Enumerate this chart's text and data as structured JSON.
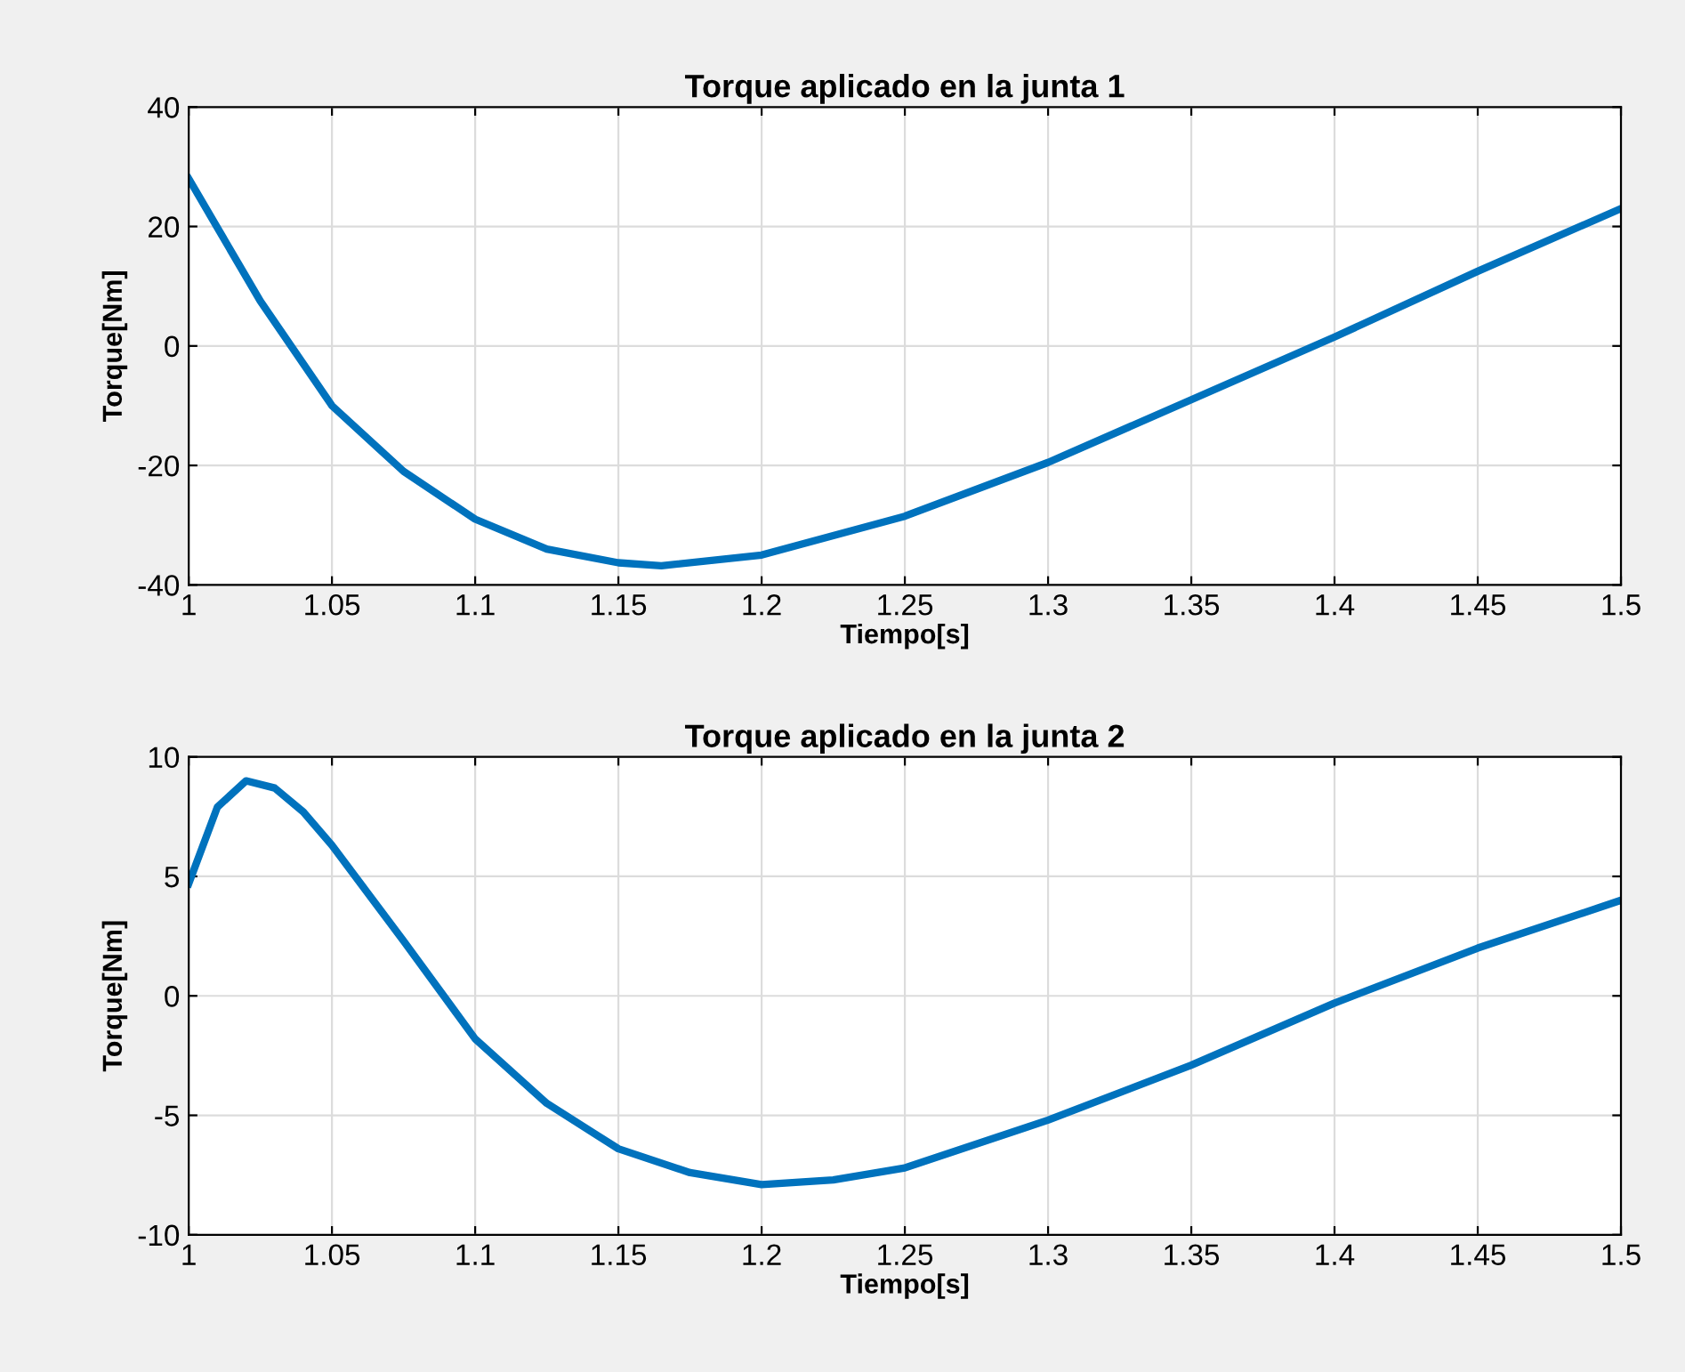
{
  "chart_data": [
    {
      "type": "line",
      "title": "Torque aplicado en la junta 1",
      "xlabel": "Tiempo[s]",
      "ylabel": "Torque[Nm]",
      "xlim": [
        1,
        1.5
      ],
      "ylim": [
        -40,
        40
      ],
      "xticks": [
        {
          "value": 1,
          "label": "1"
        },
        1.05,
        1.1,
        1.15,
        1.2,
        1.25,
        1.3,
        1.35,
        1.4,
        1.45,
        1.5
      ],
      "yticks": [
        -40,
        -20,
        0,
        20,
        40
      ],
      "grid": true,
      "legend": false,
      "series": [
        {
          "color": "#0072bd",
          "x": [
            1.0,
            1.025,
            1.05,
            1.075,
            1.1,
            1.125,
            1.15,
            1.165,
            1.2,
            1.25,
            1.3,
            1.35,
            1.4,
            1.45,
            1.5
          ],
          "values": [
            28,
            7.5,
            -10,
            -21,
            -29,
            -34,
            -36.3,
            -36.8,
            -35,
            -28.5,
            -19.5,
            -9,
            1.5,
            12.5,
            23
          ]
        }
      ]
    },
    {
      "type": "line",
      "title": "Torque aplicado en la junta 2",
      "xlabel": "Tiempo[s]",
      "ylabel": "Torque[Nm]",
      "xlim": [
        1,
        1.5
      ],
      "ylim": [
        -10,
        10
      ],
      "xticks": [
        {
          "value": 1,
          "label": "1"
        },
        1.05,
        1.1,
        1.15,
        1.2,
        1.25,
        1.3,
        1.35,
        1.4,
        1.45,
        1.5
      ],
      "yticks": [
        -10,
        -5,
        0,
        5,
        10
      ],
      "grid": true,
      "legend": false,
      "series": [
        {
          "color": "#0072bd",
          "x": [
            1.0,
            1.01,
            1.02,
            1.03,
            1.04,
            1.05,
            1.075,
            1.1,
            1.125,
            1.15,
            1.175,
            1.2,
            1.225,
            1.25,
            1.3,
            1.35,
            1.4,
            1.45,
            1.5
          ],
          "values": [
            4.7,
            7.9,
            9.0,
            8.7,
            7.7,
            6.3,
            2.3,
            -1.8,
            -4.5,
            -6.4,
            -7.4,
            -7.9,
            -7.7,
            -7.2,
            -5.2,
            -2.9,
            -0.3,
            2.0,
            4.0
          ]
        }
      ]
    }
  ]
}
